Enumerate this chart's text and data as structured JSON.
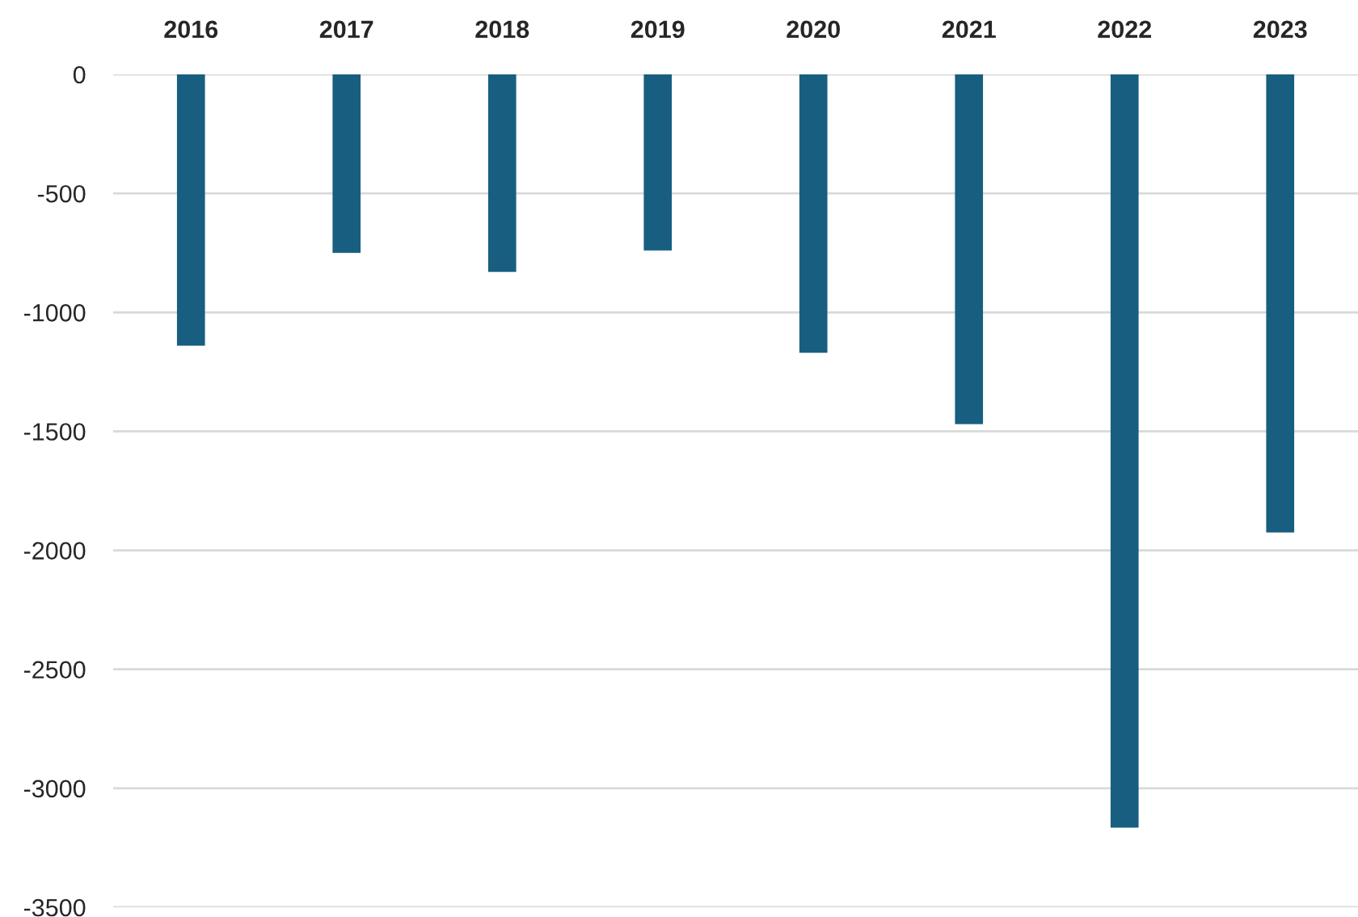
{
  "chart_data": {
    "type": "bar",
    "categories": [
      "2016",
      "2017",
      "2018",
      "2019",
      "2020",
      "2021",
      "2022",
      "2023"
    ],
    "values": [
      -1140,
      -750,
      -830,
      -740,
      -1170,
      -1470,
      -3165,
      -1925
    ],
    "color": "#175e80",
    "ylim": [
      -3500,
      0
    ],
    "yticks": [
      -3500,
      -3000,
      -2500,
      -2000,
      -1500,
      -1000,
      -500,
      0
    ],
    "grid": "y",
    "legend": false
  }
}
